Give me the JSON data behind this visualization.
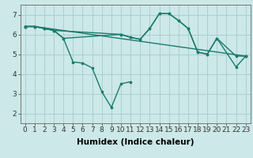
{
  "lines": [
    {
      "x": [
        0,
        1,
        2,
        3,
        4,
        5,
        6,
        7,
        8,
        9,
        10,
        11
      ],
      "y": [
        6.4,
        6.4,
        6.3,
        6.2,
        5.8,
        4.6,
        4.55,
        4.3,
        3.1,
        2.3,
        3.5,
        3.6
      ]
    },
    {
      "x": [
        0,
        1,
        2,
        3,
        4,
        10,
        11,
        12,
        13,
        14,
        15,
        16,
        17,
        18,
        19,
        20,
        22,
        23
      ],
      "y": [
        6.4,
        6.4,
        6.3,
        6.2,
        5.8,
        6.0,
        5.85,
        5.75,
        6.3,
        7.05,
        7.05,
        6.7,
        6.3,
        5.1,
        5.0,
        5.8,
        4.35,
        4.9
      ]
    },
    {
      "x": [
        0,
        1,
        2,
        3,
        10,
        11,
        12,
        13,
        14,
        15,
        16,
        17,
        18,
        19,
        20,
        22,
        23
      ],
      "y": [
        6.4,
        6.4,
        6.3,
        6.2,
        6.0,
        5.85,
        5.75,
        6.3,
        7.05,
        7.05,
        6.7,
        6.3,
        5.1,
        5.0,
        5.8,
        4.9,
        4.9
      ]
    },
    {
      "x": [
        0,
        1,
        23
      ],
      "y": [
        6.4,
        6.4,
        4.9
      ]
    }
  ],
  "color": "#1a7a6e",
  "background_color": "#cce8e8",
  "grid_color": "#aacfcf",
  "xlabel": "Humidex (Indice chaleur)",
  "xlim": [
    -0.5,
    23.5
  ],
  "ylim": [
    1.5,
    7.5
  ],
  "xticks": [
    0,
    1,
    2,
    3,
    4,
    5,
    6,
    7,
    8,
    9,
    10,
    11,
    12,
    13,
    14,
    15,
    16,
    17,
    18,
    19,
    20,
    21,
    22,
    23
  ],
  "yticks": [
    2,
    3,
    4,
    5,
    6,
    7
  ],
  "marker": "s",
  "markersize": 2.0,
  "linewidth": 1.0,
  "font_size": 6.5,
  "xlabel_fontsize": 7.5
}
